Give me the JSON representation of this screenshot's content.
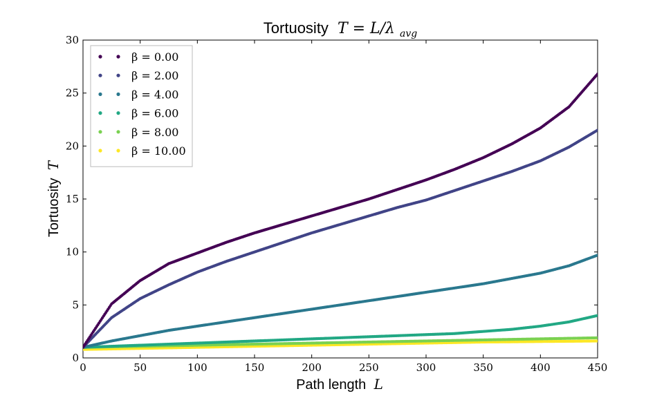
{
  "chart_data": {
    "type": "scatter",
    "title_text": "Tortuosity",
    "title_math": "T = L/λ",
    "title_sub": "avg",
    "xlabel_text": "Path length",
    "xlabel_math": "L",
    "ylabel_text": "Tortuosity",
    "ylabel_math": "T",
    "xlim": [
      0,
      450
    ],
    "ylim": [
      0,
      30
    ],
    "xticks": [
      0,
      50,
      100,
      150,
      200,
      250,
      300,
      350,
      400,
      450
    ],
    "yticks": [
      0,
      5,
      10,
      15,
      20,
      25,
      30
    ],
    "grid": false,
    "legend_position": "top-left",
    "x": [
      0,
      25,
      50,
      75,
      100,
      125,
      150,
      175,
      200,
      225,
      250,
      275,
      300,
      325,
      350,
      375,
      400,
      425,
      450
    ],
    "series": [
      {
        "name": "β = 0.00",
        "color": "#440154",
        "values": [
          1.0,
          5.1,
          7.3,
          8.9,
          9.9,
          10.9,
          11.8,
          12.6,
          13.4,
          14.2,
          15.0,
          15.9,
          16.8,
          17.8,
          18.9,
          20.2,
          21.7,
          23.7,
          26.8
        ]
      },
      {
        "name": "β = 2.00",
        "color": "#414487",
        "values": [
          1.0,
          3.8,
          5.6,
          6.9,
          8.1,
          9.1,
          10.0,
          10.9,
          11.8,
          12.6,
          13.4,
          14.2,
          14.9,
          15.8,
          16.7,
          17.6,
          18.6,
          19.9,
          21.5
        ]
      },
      {
        "name": "β = 4.00",
        "color": "#2a788e",
        "values": [
          1.0,
          1.6,
          2.1,
          2.6,
          3.0,
          3.4,
          3.8,
          4.2,
          4.6,
          5.0,
          5.4,
          5.8,
          6.2,
          6.6,
          7.0,
          7.5,
          8.0,
          8.7,
          9.7
        ]
      },
      {
        "name": "β = 6.00",
        "color": "#22a884",
        "values": [
          1.0,
          1.1,
          1.2,
          1.3,
          1.4,
          1.5,
          1.6,
          1.7,
          1.8,
          1.9,
          2.0,
          2.1,
          2.2,
          2.3,
          2.5,
          2.7,
          3.0,
          3.4,
          4.0
        ]
      },
      {
        "name": "β = 8.00",
        "color": "#7ad151",
        "values": [
          1.0,
          1.05,
          1.1,
          1.15,
          1.2,
          1.25,
          1.3,
          1.35,
          1.4,
          1.45,
          1.5,
          1.55,
          1.6,
          1.65,
          1.7,
          1.75,
          1.8,
          1.85,
          1.9
        ]
      },
      {
        "name": "β = 10.00",
        "color": "#fde725",
        "values": [
          0.8,
          0.85,
          0.9,
          0.95,
          1.0,
          1.05,
          1.1,
          1.15,
          1.2,
          1.25,
          1.3,
          1.35,
          1.4,
          1.45,
          1.5,
          1.52,
          1.55,
          1.57,
          1.6
        ]
      }
    ]
  }
}
